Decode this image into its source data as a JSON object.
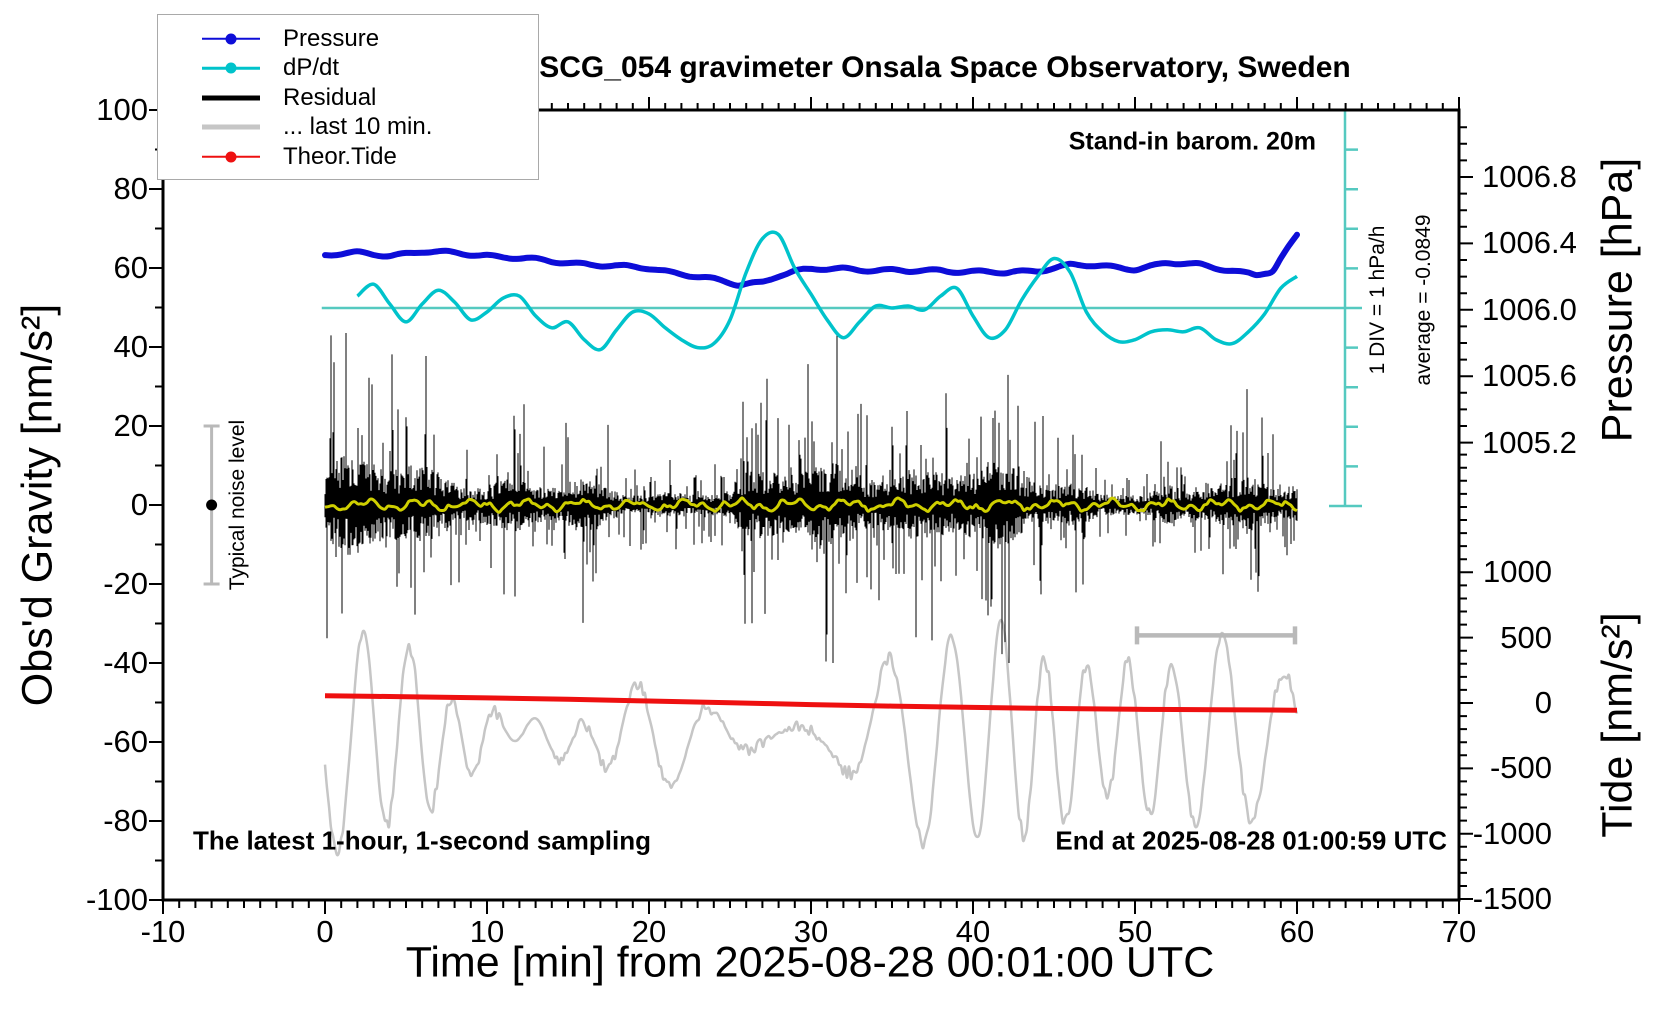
{
  "figure": {
    "title": "SCG_054 gravimeter Onsala Space Observatory, Sweden",
    "annotations": {
      "barometer": "Stand-in barom. 20m",
      "div_scale": "1 DIV = 1 hPa/h",
      "average": "average = -0.0849",
      "noise_level": "Typical noise level",
      "sampling": "The latest 1-hour, 1-second sampling",
      "end_time": "End at 2025-08-28 01:00:59 UTC"
    },
    "legend": [
      {
        "label": "Pressure",
        "color": "#0d0dd8",
        "style": "thin-dot"
      },
      {
        "label": "dP/dt",
        "color": "#00c3cb",
        "style": "thin-dot"
      },
      {
        "label": "Residual",
        "color": "#000000",
        "style": "thick"
      },
      {
        "label": "... last 10 min.",
        "color": "#c6c6c6",
        "style": "thick"
      },
      {
        "label": "Theor.Tide",
        "color": "#ee1010",
        "style": "thin-dot"
      }
    ],
    "axes": {
      "x": {
        "label": "Time [min] from 2025-08-28 00:01:00 UTC",
        "range": [
          -10,
          70
        ],
        "major_ticks": [
          -10,
          0,
          10,
          20,
          30,
          40,
          50,
          60,
          70
        ],
        "minor_step": 1
      },
      "y_left": {
        "label": "Obs'd Gravity [nm/s²]",
        "range": [
          -100,
          100
        ],
        "major_ticks": [
          100,
          80,
          60,
          40,
          20,
          0,
          -20,
          -40,
          -60,
          -80,
          -100
        ],
        "minor_step": 10
      },
      "y_right_pressure": {
        "label": "Pressure [hPa]",
        "major_tick_labels": [
          "1006.8",
          "1006.4",
          "1006.0",
          "1005.6",
          "1005.2"
        ],
        "major_ticks": [
          1006.8,
          1006.4,
          1006.0,
          1005.6,
          1005.2
        ],
        "minor_step": 0.1
      },
      "y_right_tide": {
        "label": "Tide [nm/s²]",
        "major_tick_labels": [
          "1000",
          "500",
          "0",
          "-500",
          "-1000",
          "-1500"
        ],
        "major_ticks": [
          1000,
          500,
          0,
          -500,
          -1000,
          -1500
        ],
        "minor_step": 100
      }
    },
    "colors": {
      "pressure": "#0d0dd8",
      "dpdt": "#00c3cb",
      "dpdt_gauge": "#55c9c0",
      "residual": "#000000",
      "residual_smoothed": "#cfcf00",
      "last10min": "#c6c6c6",
      "tide": "#ee1010",
      "graybar": "#b9b9b9",
      "frame": "#000000"
    }
  },
  "chart_data": {
    "type": "line",
    "title": "SCG_054 gravimeter Onsala Space Observatory, Sweden",
    "xlabel": "Time [min] from 2025-08-28 00:01:00 UTC",
    "ylabel_left": "Obs'd Gravity [nm/s²]",
    "ylabel_right_top": "Pressure [hPa]",
    "ylabel_right_bottom": "Tide [nm/s²]",
    "x_range_min": [
      -10,
      70
    ],
    "gravity_range": [
      -100,
      100
    ],
    "grid": false,
    "legend_position": "top-left",
    "series": [
      {
        "name": "Pressure",
        "unit": "hPa",
        "x": [
          0,
          2,
          4,
          6,
          8,
          10,
          12,
          14,
          16,
          18,
          20,
          22,
          24,
          25.5,
          27,
          28,
          29,
          30,
          32,
          34,
          36,
          38,
          40,
          42,
          44,
          46,
          48,
          50,
          52,
          54,
          56,
          57.5,
          58.5,
          59.2,
          60
        ],
        "y": [
          1006.33,
          1006.34,
          1006.33,
          1006.35,
          1006.34,
          1006.33,
          1006.31,
          1006.29,
          1006.28,
          1006.26,
          1006.25,
          1006.22,
          1006.18,
          1006.15,
          1006.17,
          1006.21,
          1006.23,
          1006.24,
          1006.25,
          1006.24,
          1006.23,
          1006.24,
          1006.23,
          1006.22,
          1006.24,
          1006.27,
          1006.26,
          1006.25,
          1006.28,
          1006.27,
          1006.24,
          1006.21,
          1006.23,
          1006.33,
          1006.45
        ]
      },
      {
        "name": "dP/dt",
        "unit": "hPa/h",
        "zero_line": 0,
        "average": -0.0849,
        "x": [
          2,
          3,
          4,
          5,
          6,
          7,
          8,
          9,
          10,
          11,
          12,
          13,
          14,
          15,
          16,
          17,
          18,
          19,
          20,
          21,
          22,
          23,
          24,
          25,
          26,
          27,
          28,
          29,
          30,
          31,
          32,
          33,
          34,
          35,
          36,
          37,
          38,
          39,
          40,
          41,
          42,
          43,
          44,
          45,
          46,
          47,
          48,
          49,
          50,
          51,
          52,
          53,
          54,
          55,
          56,
          57,
          58,
          59,
          60
        ],
        "y": [
          0.3,
          0.6,
          0.1,
          -0.35,
          0.1,
          0.45,
          0.15,
          -0.3,
          -0.1,
          0.25,
          0.3,
          -0.2,
          -0.5,
          -0.35,
          -0.8,
          -1.05,
          -0.55,
          -0.1,
          -0.15,
          -0.5,
          -0.8,
          -1.0,
          -0.9,
          -0.3,
          0.9,
          1.75,
          1.85,
          1.0,
          0.35,
          -0.3,
          -0.75,
          -0.35,
          0.05,
          0.0,
          0.05,
          -0.05,
          0.3,
          0.5,
          -0.2,
          -0.75,
          -0.55,
          0.2,
          0.8,
          1.25,
          0.9,
          -0.1,
          -0.6,
          -0.85,
          -0.8,
          -0.6,
          -0.55,
          -0.6,
          -0.5,
          -0.8,
          -0.9,
          -0.6,
          -0.15,
          0.5,
          0.8
        ]
      },
      {
        "name": "Theor.Tide",
        "unit": "nm/s² (tide axis)",
        "x": [
          0,
          5,
          10,
          15,
          20,
          25,
          30,
          35,
          40,
          45,
          50,
          55,
          60
        ],
        "y": [
          55,
          48,
          39,
          28,
          15,
          2,
          -12,
          -24,
          -34,
          -42,
          -48,
          -52,
          -55
        ]
      },
      {
        "name": "Residual",
        "unit": "nm/s² (gravity axis)",
        "generated": true,
        "description": "1 Hz residual noise band centered at 0; dense core about ±8 nm/s² with spikes to about ±42 nm/s², amplitude slowly modulated over the hour",
        "x_span": [
          0,
          60
        ],
        "seed": 7
      },
      {
        "name": "Residual smoothed",
        "unit": "nm/s² (gravity axis)",
        "generated": true,
        "description": "low-pass filtered residual, ±1.5 nm/s² around 0, drawn in yellow over the noise band",
        "x_span": [
          0,
          60
        ],
        "seed": 11
      },
      {
        "name": "... last 10 min.",
        "unit": "nm/s² (tide axis)",
        "generated": true,
        "description": "last 10 minutes of residual stretched over full width; quasi-periodic oscillation (≈1.5–2 min apparent period), amplitude ±100..850, centered near -260 on tide axis",
        "x_span": [
          0,
          60
        ],
        "seed": 23
      }
    ],
    "markers": {
      "noise_errorbar": {
        "t": -7,
        "value": 0,
        "half_range": 20,
        "label": "Typical noise level"
      },
      "ten_min_scalebar": {
        "t_start": 50,
        "t_end": 60,
        "gravity_level": -33
      },
      "dpdt_gauge": {
        "divisions": 10,
        "div_value_hPa_per_h": 1,
        "zero_at_center": true,
        "label": "1 DIV = 1 hPa/h"
      }
    }
  }
}
